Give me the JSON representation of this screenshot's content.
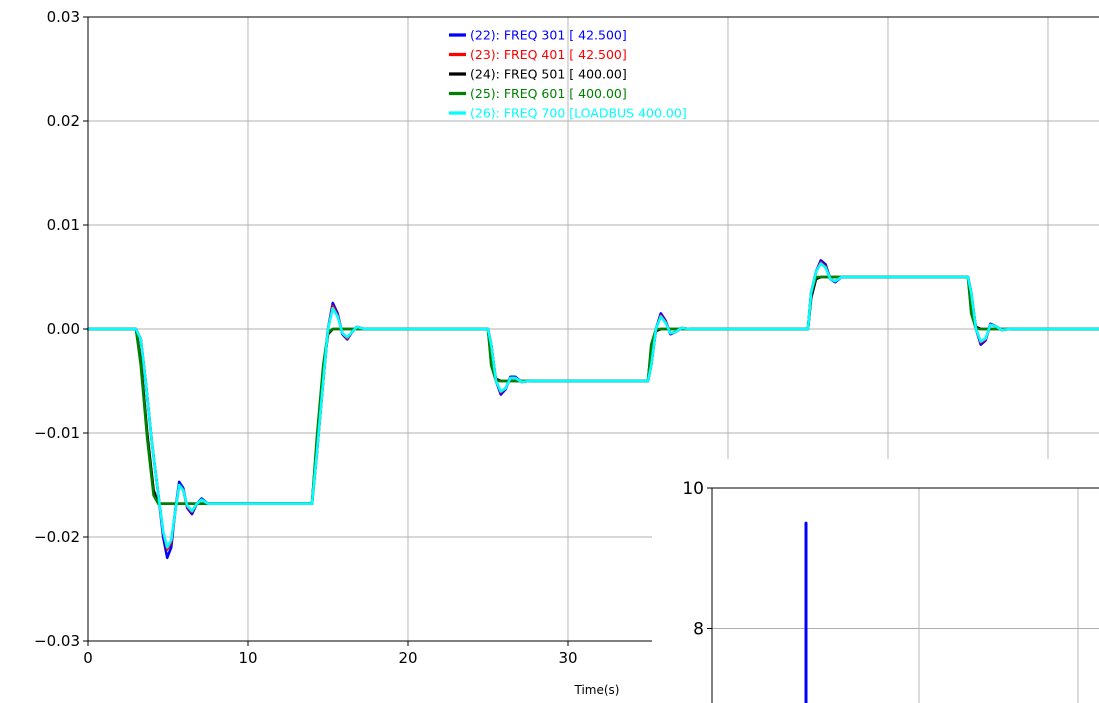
{
  "chart_data": [
    {
      "type": "line",
      "title": "",
      "xlabel": "Time(s)",
      "ylabel": "",
      "xlim": [
        0,
        64.5
      ],
      "ylim": [
        -0.03,
        0.03
      ],
      "grid": true,
      "legend_placement": "top-center",
      "x_ticks": [
        "0",
        "10",
        "20",
        "30"
      ],
      "y_ticks": [
        "0.03",
        "0.02",
        "0.01",
        "0.00",
        "−0.01",
        "−0.02",
        "−0.03"
      ],
      "series": [
        {
          "name": "(22): FREQ 301 [ 42.500]",
          "color": "#0000ff",
          "points": [
            [
              0,
              0
            ],
            [
              3,
              0
            ],
            [
              3.3,
              -0.001
            ],
            [
              3.6,
              -0.005
            ],
            [
              4,
              -0.011
            ],
            [
              4.4,
              -0.016
            ],
            [
              4.7,
              -0.02
            ],
            [
              4.95,
              -0.022
            ],
            [
              5.2,
              -0.021
            ],
            [
              5.45,
              -0.0175
            ],
            [
              5.7,
              -0.0147
            ],
            [
              5.95,
              -0.0153
            ],
            [
              6.2,
              -0.0172
            ],
            [
              6.5,
              -0.0178
            ],
            [
              6.8,
              -0.0168
            ],
            [
              7.1,
              -0.0163
            ],
            [
              7.5,
              -0.0168
            ],
            [
              14,
              -0.0168
            ],
            [
              14.3,
              -0.012
            ],
            [
              14.7,
              -0.005
            ],
            [
              15.0,
              0.0
            ],
            [
              15.3,
              0.0025
            ],
            [
              15.6,
              0.0015
            ],
            [
              15.9,
              -0.0005
            ],
            [
              16.2,
              -0.001
            ],
            [
              16.5,
              -0.0003
            ],
            [
              16.8,
              0.0002
            ],
            [
              17.3,
              0
            ],
            [
              25,
              0
            ],
            [
              25.2,
              -0.0015
            ],
            [
              25.5,
              -0.005
            ],
            [
              25.8,
              -0.0063
            ],
            [
              26.1,
              -0.0058
            ],
            [
              26.4,
              -0.0046
            ],
            [
              26.7,
              -0.0046
            ],
            [
              27.1,
              -0.0051
            ],
            [
              27.6,
              -0.005
            ],
            [
              35,
              -0.005
            ],
            [
              35.2,
              -0.0035
            ],
            [
              35.5,
              0
            ],
            [
              35.8,
              0.0015
            ],
            [
              36.1,
              0.0008
            ],
            [
              36.4,
              -0.0005
            ],
            [
              36.7,
              -0.0003
            ],
            [
              37.1,
              0.0001
            ],
            [
              37.6,
              0
            ],
            [
              45,
              0
            ],
            [
              45.2,
              0.0035
            ],
            [
              45.5,
              0.0055
            ],
            [
              45.8,
              0.0066
            ],
            [
              46.1,
              0.0062
            ],
            [
              46.4,
              0.0048
            ],
            [
              46.7,
              0.0045
            ],
            [
              47.1,
              0.005
            ],
            [
              47.6,
              0.005
            ],
            [
              55,
              0.005
            ],
            [
              55.2,
              0.0035
            ],
            [
              55.5,
              0.0
            ],
            [
              55.8,
              -0.0015
            ],
            [
              56.1,
              -0.0011
            ],
            [
              56.4,
              0.0005
            ],
            [
              56.7,
              0.0003
            ],
            [
              57.1,
              -0.0001
            ],
            [
              57.6,
              0
            ],
            [
              64.5,
              0
            ]
          ]
        },
        {
          "name": "(23): FREQ 401 [ 42.500]",
          "color": "#ff0000",
          "points": [
            [
              0,
              0
            ],
            [
              3,
              0
            ],
            [
              3.3,
              -0.001
            ],
            [
              3.6,
              -0.005
            ],
            [
              4,
              -0.011
            ],
            [
              4.4,
              -0.016
            ],
            [
              4.7,
              -0.0195
            ],
            [
              4.95,
              -0.0212
            ],
            [
              5.2,
              -0.0205
            ],
            [
              5.45,
              -0.0176
            ],
            [
              5.7,
              -0.015
            ],
            [
              5.95,
              -0.0155
            ],
            [
              6.2,
              -0.0171
            ],
            [
              6.5,
              -0.0176
            ],
            [
              6.8,
              -0.0168
            ],
            [
              7.1,
              -0.0164
            ],
            [
              7.5,
              -0.0168
            ],
            [
              14,
              -0.0168
            ],
            [
              14.3,
              -0.012
            ],
            [
              14.7,
              -0.005
            ],
            [
              15.0,
              0.0
            ],
            [
              15.3,
              0.0022
            ],
            [
              15.6,
              0.0013
            ],
            [
              15.9,
              -0.0004
            ],
            [
              16.2,
              -0.0009
            ],
            [
              16.5,
              -0.0003
            ],
            [
              16.8,
              0.0002
            ],
            [
              17.3,
              0
            ],
            [
              25,
              0
            ],
            [
              25.2,
              -0.0015
            ],
            [
              25.5,
              -0.005
            ],
            [
              25.8,
              -0.0061
            ],
            [
              26.1,
              -0.0057
            ],
            [
              26.4,
              -0.0047
            ],
            [
              26.7,
              -0.0047
            ],
            [
              27.1,
              -0.0051
            ],
            [
              27.6,
              -0.005
            ],
            [
              35,
              -0.005
            ],
            [
              35.2,
              -0.0035
            ],
            [
              35.5,
              0
            ],
            [
              35.8,
              0.0013
            ],
            [
              36.1,
              0.0007
            ],
            [
              36.4,
              -0.0004
            ],
            [
              36.7,
              -0.0003
            ],
            [
              37.1,
              0.0001
            ],
            [
              37.6,
              0
            ],
            [
              45,
              0
            ],
            [
              45.2,
              0.0035
            ],
            [
              45.5,
              0.0055
            ],
            [
              45.8,
              0.0064
            ],
            [
              46.1,
              0.006
            ],
            [
              46.4,
              0.0048
            ],
            [
              46.7,
              0.0046
            ],
            [
              47.1,
              0.005
            ],
            [
              47.6,
              0.005
            ],
            [
              55,
              0.005
            ],
            [
              55.2,
              0.0035
            ],
            [
              55.5,
              0.0
            ],
            [
              55.8,
              -0.0013
            ],
            [
              56.1,
              -0.001
            ],
            [
              56.4,
              0.0004
            ],
            [
              56.7,
              0.0003
            ],
            [
              57.1,
              -0.0001
            ],
            [
              57.6,
              0
            ],
            [
              64.5,
              0
            ]
          ]
        },
        {
          "name": "(24): FREQ 501 [ 400.00]",
          "color": "#000000",
          "points": [
            [
              0,
              0
            ],
            [
              3,
              0
            ],
            [
              3.3,
              -0.003
            ],
            [
              3.7,
              -0.01
            ],
            [
              4.1,
              -0.0155
            ],
            [
              4.4,
              -0.0168
            ],
            [
              14,
              -0.0168
            ],
            [
              14.3,
              -0.011
            ],
            [
              14.7,
              -0.004
            ],
            [
              15.0,
              -0.0005
            ],
            [
              15.3,
              0
            ],
            [
              25,
              0
            ],
            [
              25.2,
              -0.003
            ],
            [
              25.5,
              -0.0048
            ],
            [
              25.8,
              -0.005
            ],
            [
              35,
              -0.005
            ],
            [
              35.2,
              -0.002
            ],
            [
              35.5,
              -0.0002
            ],
            [
              35.8,
              0
            ],
            [
              45,
              0
            ],
            [
              45.2,
              0.003
            ],
            [
              45.5,
              0.0048
            ],
            [
              45.8,
              0.005
            ],
            [
              55,
              0.005
            ],
            [
              55.2,
              0.002
            ],
            [
              55.5,
              0.0002
            ],
            [
              55.8,
              0
            ],
            [
              64.5,
              0
            ]
          ]
        },
        {
          "name": "(25): FREQ 601 [ 400.00]",
          "color": "#008000",
          "points": [
            [
              0,
              0
            ],
            [
              3,
              0
            ],
            [
              3.3,
              -0.0035
            ],
            [
              3.7,
              -0.0105
            ],
            [
              4.1,
              -0.016
            ],
            [
              4.4,
              -0.0168
            ],
            [
              14,
              -0.0168
            ],
            [
              14.3,
              -0.0105
            ],
            [
              14.7,
              -0.0035
            ],
            [
              15.0,
              -0.0003
            ],
            [
              15.3,
              0
            ],
            [
              25,
              0
            ],
            [
              25.2,
              -0.0035
            ],
            [
              25.5,
              -0.005
            ],
            [
              35,
              -0.005
            ],
            [
              35.2,
              -0.0015
            ],
            [
              35.5,
              0
            ],
            [
              45,
              0
            ],
            [
              45.2,
              0.0035
            ],
            [
              45.5,
              0.005
            ],
            [
              55,
              0.005
            ],
            [
              55.2,
              0.0015
            ],
            [
              55.5,
              0
            ],
            [
              64.5,
              0
            ]
          ]
        },
        {
          "name": "(26): FREQ 700 [LOADBUS 400.00]",
          "color": "#00ffff",
          "points": [
            [
              0,
              0
            ],
            [
              3,
              0
            ],
            [
              3.3,
              -0.001
            ],
            [
              3.6,
              -0.005
            ],
            [
              4,
              -0.011
            ],
            [
              4.4,
              -0.016
            ],
            [
              4.7,
              -0.0195
            ],
            [
              4.95,
              -0.021
            ],
            [
              5.2,
              -0.0203
            ],
            [
              5.45,
              -0.0176
            ],
            [
              5.7,
              -0.015
            ],
            [
              5.95,
              -0.0155
            ],
            [
              6.2,
              -0.017
            ],
            [
              6.5,
              -0.0175
            ],
            [
              6.8,
              -0.0168
            ],
            [
              7.1,
              -0.0164
            ],
            [
              7.5,
              -0.0168
            ],
            [
              14,
              -0.0168
            ],
            [
              14.3,
              -0.012
            ],
            [
              14.7,
              -0.005
            ],
            [
              15.0,
              0.0
            ],
            [
              15.3,
              0.002
            ],
            [
              15.6,
              0.0012
            ],
            [
              15.9,
              -0.0004
            ],
            [
              16.2,
              -0.0008
            ],
            [
              16.5,
              -0.0003
            ],
            [
              16.8,
              0.0002
            ],
            [
              17.3,
              0
            ],
            [
              25,
              0
            ],
            [
              25.2,
              -0.0015
            ],
            [
              25.5,
              -0.005
            ],
            [
              25.8,
              -0.006
            ],
            [
              26.1,
              -0.0057
            ],
            [
              26.4,
              -0.0047
            ],
            [
              26.7,
              -0.0047
            ],
            [
              27.1,
              -0.0051
            ],
            [
              27.6,
              -0.005
            ],
            [
              35,
              -0.005
            ],
            [
              35.2,
              -0.0035
            ],
            [
              35.5,
              0
            ],
            [
              35.8,
              0.0012
            ],
            [
              36.1,
              0.0006
            ],
            [
              36.4,
              -0.0004
            ],
            [
              36.7,
              -0.0003
            ],
            [
              37.1,
              0.0001
            ],
            [
              37.6,
              0
            ],
            [
              45,
              0
            ],
            [
              45.2,
              0.0035
            ],
            [
              45.5,
              0.0055
            ],
            [
              45.8,
              0.0063
            ],
            [
              46.1,
              0.0059
            ],
            [
              46.4,
              0.0048
            ],
            [
              46.7,
              0.0046
            ],
            [
              47.1,
              0.005
            ],
            [
              47.6,
              0.005
            ],
            [
              55,
              0.005
            ],
            [
              55.2,
              0.0035
            ],
            [
              55.5,
              0.0
            ],
            [
              55.8,
              -0.0012
            ],
            [
              56.1,
              -0.0009
            ],
            [
              56.4,
              0.0004
            ],
            [
              56.7,
              0.0003
            ],
            [
              57.1,
              -0.0001
            ],
            [
              57.6,
              0
            ],
            [
              64.5,
              0
            ]
          ]
        }
      ]
    },
    {
      "type": "line",
      "title": "",
      "xlabel": "",
      "ylabel": "",
      "xlim": [
        0,
        64.5
      ],
      "ylim": [
        6,
        10
      ],
      "grid": true,
      "y_ticks": [
        "10",
        "8"
      ],
      "series": [
        {
          "name": "",
          "color": "#0000ff",
          "points": [
            [
              4.6,
              9.5
            ],
            [
              4.6,
              6.0
            ]
          ]
        }
      ]
    }
  ]
}
